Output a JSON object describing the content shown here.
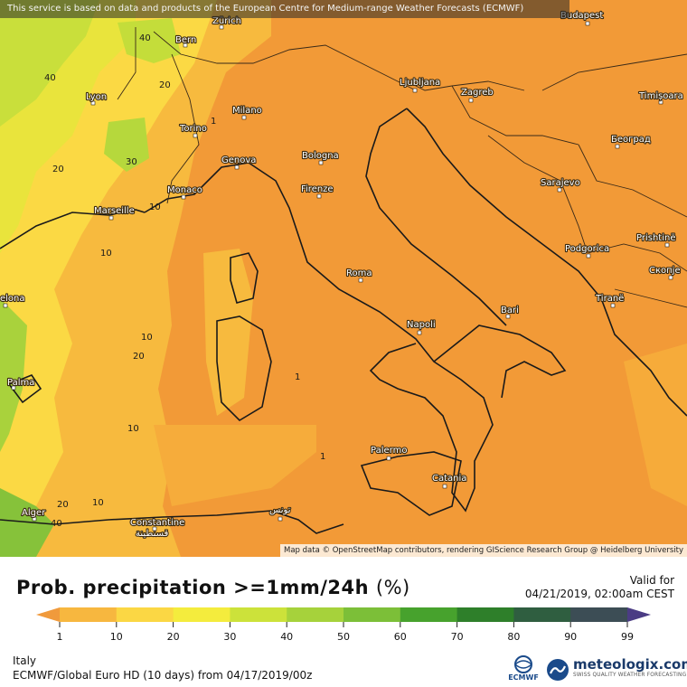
{
  "header": {
    "banner": "This service is based on data and products of the European Centre for Medium-range Weather Forecasts (ECMWF)",
    "attribution": "Map data © OpenStreetMap contributors, rendering GIScience Research Group @ Heidelberg University"
  },
  "title": {
    "main": "Prob. precipitation >=1mm/24h",
    "unit": "(%)"
  },
  "valid": {
    "label": "Valid for",
    "datetime": "04/21/2019, 02:00am CEST"
  },
  "legend": {
    "ticks": [
      "1",
      "10",
      "20",
      "30",
      "40",
      "50",
      "60",
      "70",
      "80",
      "90",
      "99"
    ],
    "colors": [
      "#f09a3c",
      "#f7b73f",
      "#fbd744",
      "#f4ec3d",
      "#cce23a",
      "#a6d23b",
      "#7cbf38",
      "#47a22d",
      "#2e7f2a",
      "#2f5e40",
      "#3c4d55",
      "#4b3c84"
    ]
  },
  "footer": {
    "region": "Italy",
    "model_run": "ECMWF/Global Euro HD (10 days) from 04/17/2019/00z",
    "ecmwf_logo_text": "ECMWF",
    "brand_name": "meteologix.com",
    "brand_tagline": "SWISS QUALITY WEATHER FORECASTING"
  },
  "map": {
    "cities": [
      {
        "name": "Zürich"
      },
      {
        "name": "Bern"
      },
      {
        "name": "Lyon"
      },
      {
        "name": "Milano"
      },
      {
        "name": "Torino"
      },
      {
        "name": "Genova"
      },
      {
        "name": "Bologna"
      },
      {
        "name": "Monaco"
      },
      {
        "name": "Marseille"
      },
      {
        "name": "Firenze"
      },
      {
        "name": "Roma"
      },
      {
        "name": "Napoli"
      },
      {
        "name": "Bari"
      },
      {
        "name": "Palermo"
      },
      {
        "name": "Catania"
      },
      {
        "name": "Ljubljana"
      },
      {
        "name": "Zagreb"
      },
      {
        "name": "Budapest"
      },
      {
        "name": "Timișoara"
      },
      {
        "name": "Београд"
      },
      {
        "name": "Sarajevo"
      },
      {
        "name": "Podgorica"
      },
      {
        "name": "Prishtinë"
      },
      {
        "name": "Скопје"
      },
      {
        "name": "Tiranë"
      },
      {
        "name": "Palma"
      },
      {
        "name": "Alger"
      },
      {
        "name": "Constantine"
      },
      {
        "name": "قسنطينة"
      },
      {
        "name": "تونس"
      },
      {
        "name": "elona"
      }
    ],
    "isolines": [
      "40",
      "20",
      "40",
      "20",
      "30",
      "1",
      "10",
      "10",
      "10",
      "20",
      "10",
      "1",
      "20",
      "10",
      "40",
      "1"
    ]
  }
}
